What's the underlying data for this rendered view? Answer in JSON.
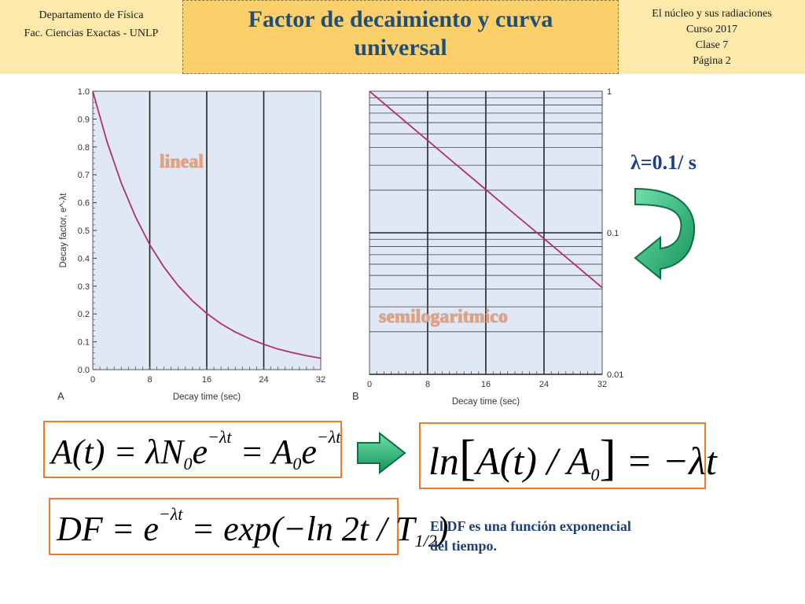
{
  "header": {
    "left_line1": "Departamento de Física",
    "left_line2": "Fac. Ciencias Exactas - UNLP",
    "title_line1": "Factor de decaimiento y curva",
    "title_line2": "universal",
    "right_line1": "El núcleo y sus radiaciones",
    "right_line2": "Curso 2017",
    "right_line3": "Clase 7",
    "right_line4": "Página 2"
  },
  "labels": {
    "lineal": "lineal",
    "semilog": "semilogaritmico",
    "lambda": "λ=0.1/ s"
  },
  "formulas": {
    "f1": "A(t) = λN₀e⁻ᵏᵗ = A₀e⁻ᵏᵗ",
    "f2": "ln[A(t) / A₀] = −λt",
    "f3": "DF = e⁻ᵏᵗ = exp(−ln 2t / T₁/₂)"
  },
  "note": "El DF es una función exponencial del tiempo.",
  "colors": {
    "header_bg": "#fde9a9",
    "title_bg": "#fbd06a",
    "title_text": "#1f4e79",
    "plot_bg": "#dfe8f4",
    "curve": "#b0306a",
    "formula_border": "#ee7a2b",
    "arrow_green": "#1fa56a"
  },
  "chart_data": [
    {
      "type": "line",
      "panel_label": "A",
      "xlabel": "Decay time (sec)",
      "ylabel": "Decay factor, e^-λt",
      "xticks": [
        "0",
        "8",
        "16",
        "24",
        "32"
      ],
      "yticks": [
        "0.0",
        "0.1",
        "0.2",
        "0.3",
        "0.4",
        "0.5",
        "0.6",
        "0.7",
        "0.8",
        "0.9",
        "1.0"
      ],
      "xlim": [
        0,
        32
      ],
      "ylim": [
        0,
        1
      ],
      "yscale": "linear",
      "grid": true,
      "series": [
        {
          "x": [
            0,
            2,
            4,
            6,
            8,
            10,
            12,
            14,
            16,
            18,
            20,
            22,
            24,
            26,
            28,
            30,
            32
          ],
          "y": [
            1.0,
            0.819,
            0.67,
            0.549,
            0.449,
            0.368,
            0.301,
            0.247,
            0.202,
            0.165,
            0.135,
            0.111,
            0.091,
            0.074,
            0.061,
            0.05,
            0.041
          ]
        }
      ]
    },
    {
      "type": "line",
      "panel_label": "B",
      "xlabel": "Decay time (sec)",
      "ylabel": "",
      "xticks": [
        "0",
        "8",
        "16",
        "24",
        "32"
      ],
      "yticks": [
        "1",
        "0.1",
        "0.01"
      ],
      "xlim": [
        0,
        32
      ],
      "ylim": [
        0.01,
        1
      ],
      "yscale": "log",
      "grid": true,
      "series": [
        {
          "x": [
            0,
            4,
            8,
            12,
            16,
            20,
            24,
            28,
            32
          ],
          "y": [
            1.0,
            0.67,
            0.449,
            0.301,
            0.202,
            0.135,
            0.091,
            0.061,
            0.041
          ]
        }
      ]
    }
  ]
}
